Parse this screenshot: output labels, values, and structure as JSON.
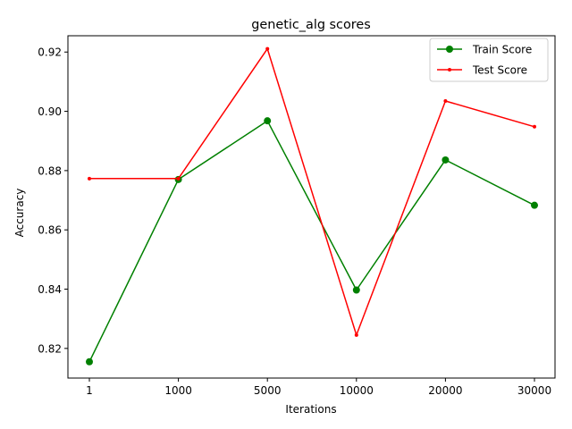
{
  "chart_data": {
    "type": "line",
    "title": "genetic_alg scores",
    "xlabel": "Iterations",
    "ylabel": "Accuracy",
    "categories": [
      "1",
      "1000",
      "5000",
      "10000",
      "20000",
      "30000"
    ],
    "ylim": [
      0.81,
      0.9255
    ],
    "yticks": [
      "0.82",
      "0.84",
      "0.86",
      "0.88",
      "0.90",
      "0.92"
    ],
    "legend_position": "top-right",
    "grid": false,
    "series": [
      {
        "name": "Train Score",
        "color": "#008000",
        "marker": "circle",
        "values": [
          0.8155,
          0.877,
          0.8968,
          0.8397,
          0.8836,
          0.8683
        ]
      },
      {
        "name": "Test Score",
        "color": "#ff0000",
        "marker": "point",
        "values": [
          0.8773,
          0.8773,
          0.9211,
          0.8245,
          0.9035,
          0.8948
        ]
      }
    ]
  }
}
